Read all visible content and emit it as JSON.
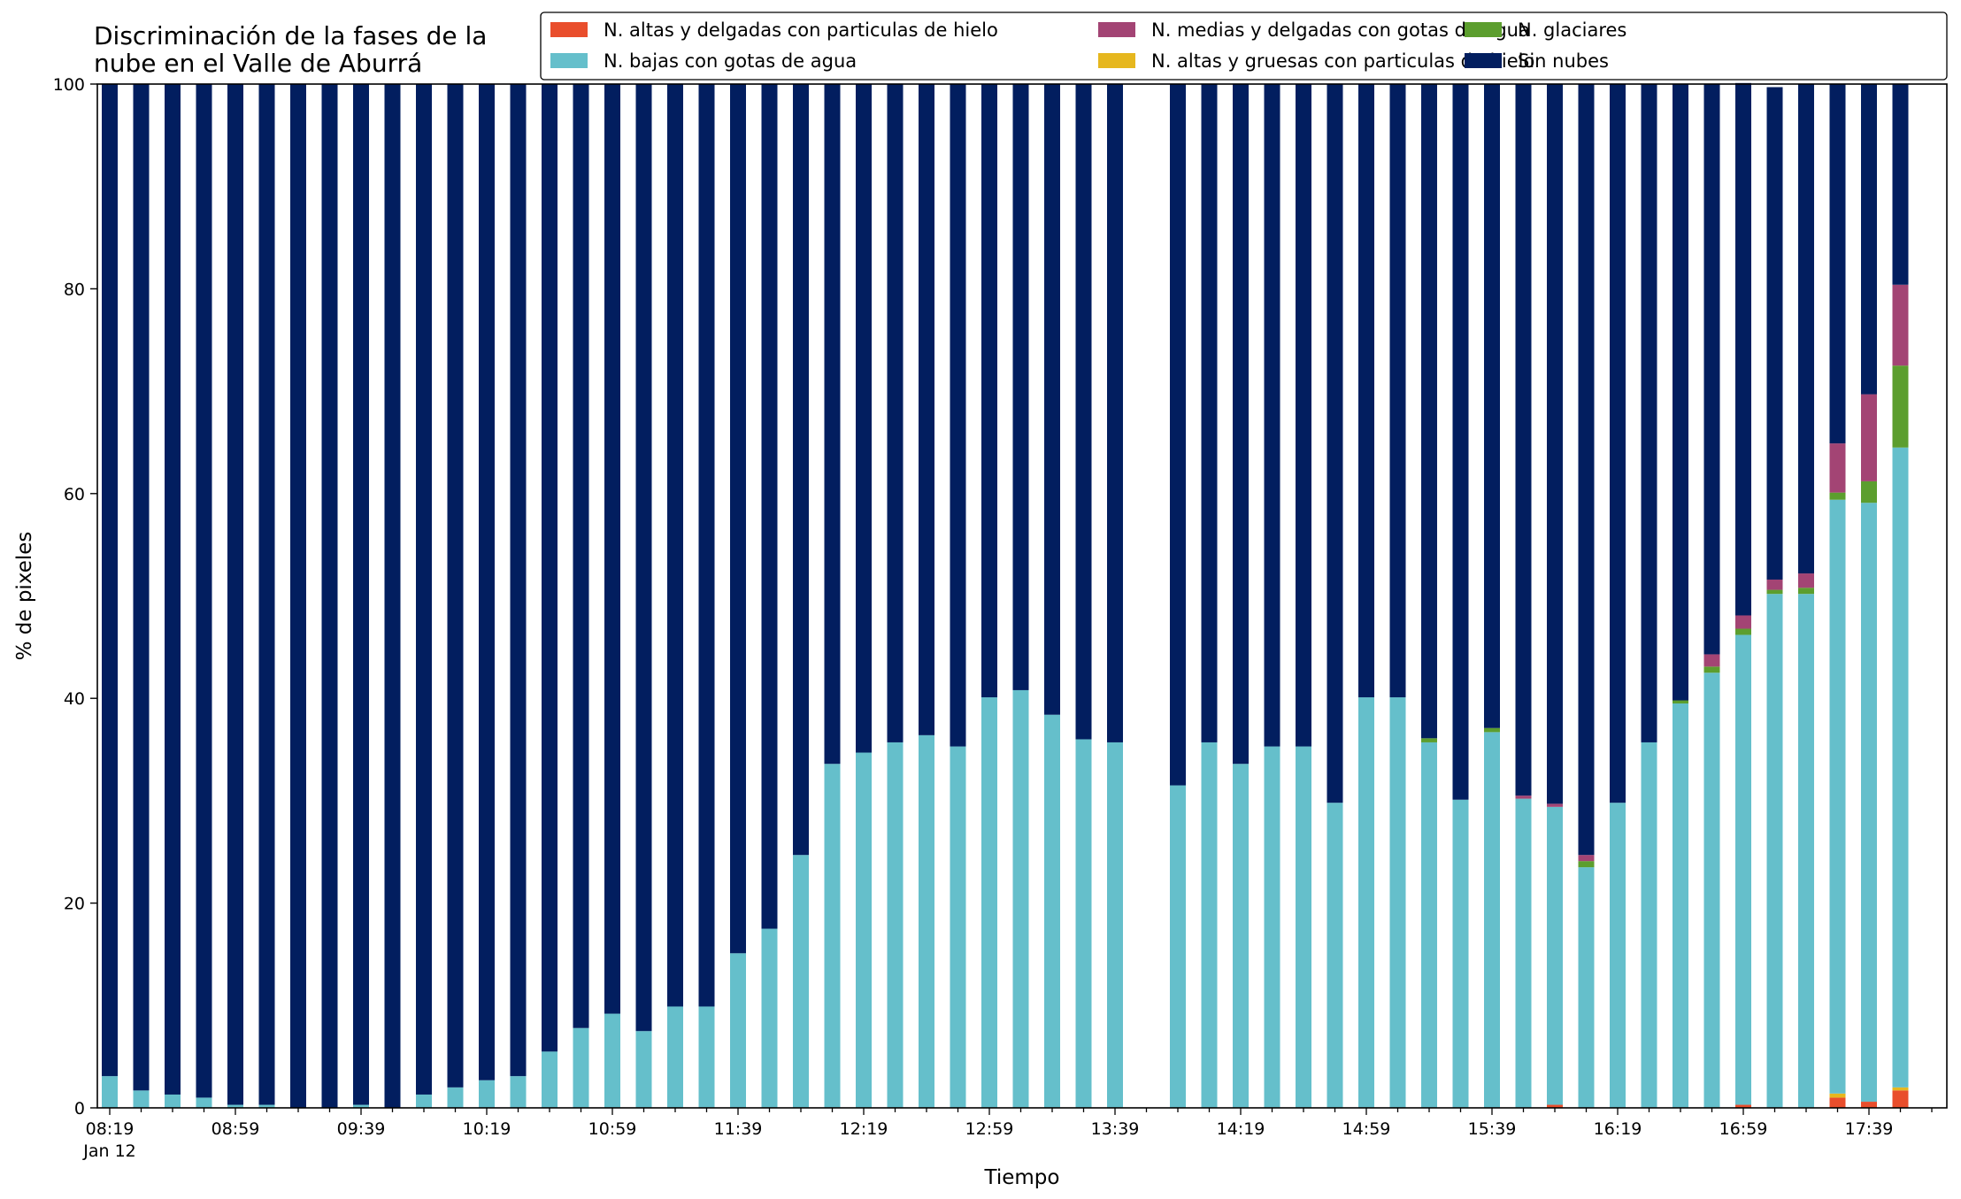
{
  "chart_data": {
    "type": "bar",
    "stacked": true,
    "title_lines": [
      "Discriminación de la fases de la",
      "nube en el Valle de Aburrá"
    ],
    "xlabel": "Tiempo",
    "ylabel": "% de pixeles",
    "ylim": [
      0,
      100
    ],
    "yticks": [
      0,
      20,
      40,
      60,
      80,
      100
    ],
    "grid": false,
    "legend_placement": "top-right",
    "x_tick_labels": [
      {
        "index": 0,
        "label": "08:19",
        "sublabel": "Jan 12"
      },
      {
        "index": 4,
        "label": "08:59"
      },
      {
        "index": 8,
        "label": "09:39"
      },
      {
        "index": 12,
        "label": "10:19"
      },
      {
        "index": 16,
        "label": "10:59"
      },
      {
        "index": 20,
        "label": "11:39"
      },
      {
        "index": 24,
        "label": "12:19"
      },
      {
        "index": 28,
        "label": "12:59"
      },
      {
        "index": 32,
        "label": "13:39"
      },
      {
        "index": 36,
        "label": "14:19"
      },
      {
        "index": 40,
        "label": "14:59"
      },
      {
        "index": 44,
        "label": "15:39"
      },
      {
        "index": 48,
        "label": "16:19"
      },
      {
        "index": 52,
        "label": "16:59"
      },
      {
        "index": 56,
        "label": "17:39"
      }
    ],
    "series": [
      {
        "name": "N. altas y delgadas con particulas de hielo",
        "color": "#e94e2c",
        "values": [
          0,
          0,
          0,
          0,
          0,
          0,
          0,
          0,
          0,
          0,
          0,
          0,
          0,
          0,
          0,
          0,
          0,
          0,
          0,
          0,
          0,
          0,
          0,
          0,
          0,
          0,
          0,
          0,
          0,
          0,
          0,
          0,
          0,
          0,
          0,
          0,
          0,
          0,
          0,
          0,
          0,
          0,
          0,
          0,
          0,
          0,
          0.3,
          0,
          0,
          0,
          0,
          0,
          0.3,
          0,
          0,
          1.0,
          0.6,
          1.7
        ]
      },
      {
        "name": "N. altas y gruesas con particulas de hielo",
        "color": "#e6b71e",
        "values": [
          0,
          0,
          0,
          0,
          0,
          0,
          0,
          0,
          0,
          0,
          0,
          0,
          0,
          0,
          0,
          0,
          0,
          0,
          0,
          0,
          0,
          0,
          0,
          0,
          0,
          0,
          0,
          0,
          0,
          0,
          0,
          0,
          0,
          0,
          0,
          0,
          0,
          0,
          0,
          0,
          0,
          0,
          0,
          0,
          0,
          0,
          0,
          0,
          0,
          0,
          0,
          0,
          0,
          0,
          0,
          0.4,
          0,
          0.3
        ]
      },
      {
        "name": "N. bajas con gotas de agua",
        "color": "#65bfcb",
        "values": [
          3.1,
          1.7,
          1.3,
          1.0,
          0.3,
          0.3,
          0,
          0,
          0.3,
          0,
          1.3,
          2.0,
          2.7,
          3.1,
          5.5,
          7.8,
          9.2,
          7.5,
          9.9,
          9.9,
          15.1,
          17.5,
          24.7,
          33.6,
          34.7,
          35.7,
          36.4,
          35.3,
          40.1,
          40.8,
          38.4,
          36.0,
          35.7,
          0,
          31.5,
          35.7,
          33.6,
          35.3,
          35.3,
          29.8,
          40.1,
          40.1,
          35.7,
          30.1,
          36.7,
          30.2,
          29.1,
          23.5,
          29.8,
          35.7,
          39.5,
          42.5,
          45.9,
          50.2,
          50.2,
          58.0,
          58.5,
          62.5
        ]
      },
      {
        "name": "N. glaciares",
        "color": "#5c9e2e",
        "values": [
          0,
          0,
          0,
          0,
          0,
          0,
          0,
          0,
          0,
          0,
          0,
          0,
          0,
          0,
          0,
          0,
          0,
          0,
          0,
          0,
          0,
          0,
          0,
          0,
          0,
          0,
          0,
          0,
          0,
          0,
          0,
          0,
          0,
          0,
          0,
          0,
          0,
          0,
          0,
          0,
          0,
          0,
          0.4,
          0,
          0.4,
          0,
          0,
          0.6,
          0,
          0,
          0.3,
          0.6,
          0.6,
          0.4,
          0.6,
          0.7,
          2.1,
          8.0
        ]
      },
      {
        "name": "N. medias y delgadas con gotas de agua",
        "color": "#a34474",
        "values": [
          0,
          0,
          0,
          0,
          0,
          0,
          0,
          0,
          0,
          0,
          0,
          0,
          0,
          0,
          0,
          0,
          0,
          0,
          0,
          0,
          0,
          0,
          0,
          0,
          0,
          0,
          0,
          0,
          0,
          0,
          0,
          0,
          0,
          0,
          0,
          0,
          0,
          0,
          0,
          0,
          0,
          0,
          0,
          0,
          0,
          0.3,
          0.3,
          0.6,
          0,
          0,
          0,
          1.2,
          1.3,
          1.0,
          1.4,
          4.8,
          8.5,
          7.9
        ]
      },
      {
        "name": "Sin nubes",
        "color": "#021e5f",
        "values": [
          96.9,
          98.3,
          98.7,
          99.0,
          99.7,
          99.7,
          100,
          100,
          99.7,
          100,
          98.7,
          98.0,
          97.3,
          96.9,
          94.5,
          92.2,
          90.8,
          92.5,
          90.1,
          90.1,
          84.9,
          82.5,
          75.3,
          66.4,
          65.3,
          64.3,
          63.6,
          64.7,
          59.9,
          59.2,
          61.6,
          64.0,
          64.3,
          0,
          68.5,
          64.3,
          66.4,
          64.7,
          64.7,
          70.2,
          59.9,
          59.9,
          63.9,
          69.9,
          62.9,
          69.5,
          70.3,
          75.3,
          70.2,
          64.3,
          60.2,
          55.7,
          52.0,
          48.1,
          47.8,
          35.1,
          30.3,
          19.6
        ]
      }
    ],
    "legend_order": [
      0,
      2,
      4,
      1,
      3,
      5
    ]
  }
}
